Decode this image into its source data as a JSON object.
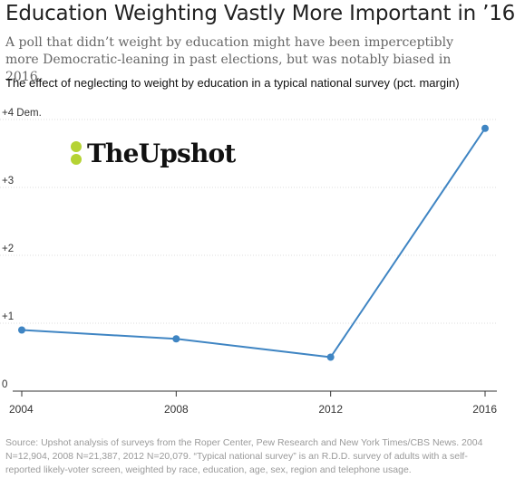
{
  "title": "Education Weighting Vastly More Important in ’16",
  "subtitle": "A poll that didn’t weight by education might have been imperceptibly more Democratic-leaning in past elections, but was notably biased in 2016.",
  "logo": {
    "text": "TheUpshot",
    "accent_color": "#b5d334"
  },
  "chart_data": {
    "type": "line",
    "title": "The effect of neglecting to weight by education in a typical national survey (pct. margin)",
    "x": [
      2004,
      2008,
      2012,
      2016
    ],
    "x_tick_labels": [
      "2004",
      "2008",
      "2012",
      "2016"
    ],
    "series": [
      {
        "values": [
          0.9,
          0.77,
          0.5,
          3.87
        ],
        "color": "#3f85c3"
      }
    ],
    "y_ticks": [
      {
        "value": 0,
        "label": "0"
      },
      {
        "value": 1,
        "label": "+1"
      },
      {
        "value": 2,
        "label": "+2"
      },
      {
        "value": 3,
        "label": "+3"
      },
      {
        "value": 4,
        "label": "+4 Dem."
      }
    ],
    "ylim": [
      0,
      4
    ],
    "xlim": [
      2004,
      2016
    ],
    "grid": true
  },
  "source": "Source: Upshot analysis of surveys from the Roper Center, Pew Research and New York Times/CBS News. 2004 N=12,904, 2008 N=21,387, 2012 N=20,079. “Typical national survey” is an R.D.D. survey of adults with a self-reported likely-voter screen, weighted by race, education, age, sex, region and telephone usage."
}
